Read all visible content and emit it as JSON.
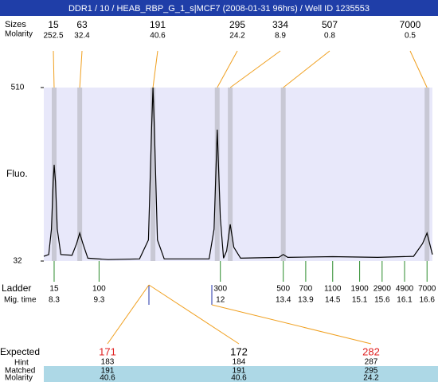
{
  "chart_data": {
    "type": "electropherogram",
    "title": "DDR1 / 10 / HEAB_RBP_G_1_s|MCF7 (2008-01-31 96hrs) / Well ID 1235553",
    "row_labels": {
      "sizes": "Sizes",
      "molarity": "Molarity",
      "ylabel": "Fluo.",
      "ladder": "Ladder",
      "mig_time": "Mig. time",
      "expected": "Expected",
      "hint": "Hint",
      "matched": "Matched",
      "molarity2": "Molarity"
    },
    "ylim": [
      32,
      510
    ],
    "yticks": [
      32,
      510
    ],
    "xlim": [
      8.07,
      16.72
    ],
    "trace": {
      "color": "#000000",
      "x": [
        8.07,
        8.18,
        8.24,
        8.28,
        8.3,
        8.33,
        8.37,
        8.45,
        8.7,
        8.8,
        8.87,
        8.94,
        9.05,
        9.5,
        10.2,
        10.4,
        10.47,
        10.5,
        10.53,
        10.6,
        10.75,
        11.75,
        11.86,
        11.93,
        12.0,
        12.07,
        12.14,
        12.22,
        12.3,
        12.45,
        13.3,
        13.4,
        13.5,
        14.5,
        15.5,
        16.3,
        16.5,
        16.6,
        16.68,
        16.72
      ],
      "values": [
        45,
        50,
        120,
        250,
        297,
        250,
        120,
        50,
        48,
        80,
        109,
        80,
        40,
        36,
        38,
        90,
        400,
        510,
        400,
        90,
        38,
        38,
        120,
        394,
        150,
        40,
        60,
        133,
        70,
        40,
        42,
        50,
        42,
        44,
        42,
        45,
        80,
        109,
        70,
        50
      ]
    },
    "peaks": [
      {
        "size": 15,
        "molarity": 252.5,
        "time": 8.3
      },
      {
        "size": 63,
        "molarity": 32.4,
        "time": 8.87
      },
      {
        "size": 191,
        "molarity": 40.6,
        "time": 10.5
      },
      {
        "size": 295,
        "molarity": 24.2,
        "time": 11.93
      },
      {
        "size": 334,
        "molarity": 8.9,
        "time": 12.22
      },
      {
        "size": 507,
        "molarity": 0.8,
        "time": 13.4
      },
      {
        "size": 7000,
        "molarity": 0.5,
        "time": 16.6
      }
    ],
    "ladder": [
      {
        "size": 15,
        "time": 8.3
      },
      {
        "size": 100,
        "time": 9.3
      },
      {
        "size": 300,
        "time": 12
      },
      {
        "size": 500,
        "time": 13.4
      },
      {
        "size": 700,
        "time": 13.9
      },
      {
        "size": 1100,
        "time": 14.5
      },
      {
        "size": 1900,
        "time": 15.1
      },
      {
        "size": 2900,
        "time": 15.6
      },
      {
        "size": 4900,
        "time": 16.1
      },
      {
        "size": 7000,
        "time": 16.6
      }
    ],
    "expected": [
      {
        "expected": 171,
        "color": "#e02020",
        "hint": 183,
        "matched": 191,
        "molarity": 40.6
      },
      {
        "expected": 172,
        "color": "#000000",
        "hint": 184,
        "matched": 191,
        "molarity": 40.6
      },
      {
        "expected": 282,
        "color": "#e02020",
        "hint": 287,
        "matched": 295,
        "molarity": 24.2
      }
    ]
  }
}
